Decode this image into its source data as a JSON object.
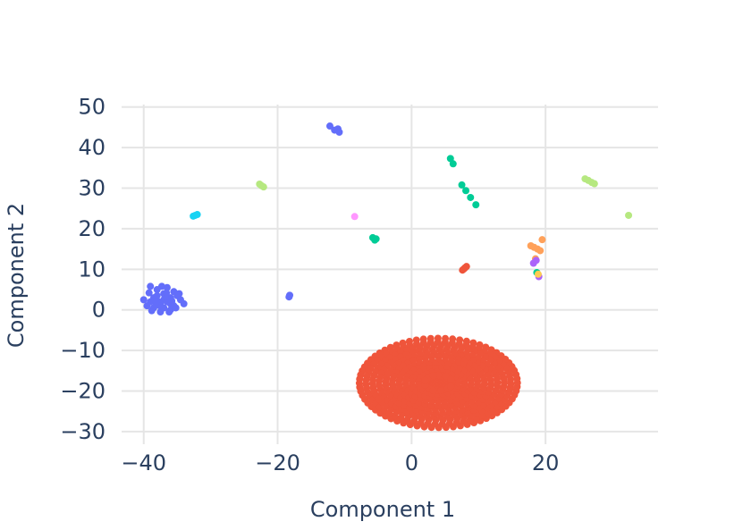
{
  "chart_data": {
    "type": "scatter",
    "title": "",
    "xlabel": "Component 1",
    "ylabel": "Component 2",
    "xlim": [
      -43.3,
      36.8
    ],
    "ylim": [
      -33.1,
      50.6
    ],
    "x_ticks": [
      -40,
      -20,
      0,
      20
    ],
    "y_ticks": [
      -30,
      -20,
      -10,
      0,
      10,
      20,
      30,
      40,
      50
    ],
    "x_tick_labels": [
      "−40",
      "−20",
      "0",
      "20"
    ],
    "y_tick_labels": [
      "−30",
      "−20",
      "−10",
      "0",
      "10",
      "20",
      "30",
      "40",
      "50"
    ],
    "grid": true,
    "legend": "none",
    "colors": {
      "blue": "#636efa",
      "red": "#ef553b",
      "green": "#00cc96",
      "purple": "#ab63fa",
      "orange": "#ffa15a",
      "cyan": "#19d3f3",
      "pink": "#ff6692",
      "lime": "#b6e880",
      "magenta": "#ff97ff",
      "light_orange": "#fecb52"
    },
    "groups": [
      {
        "color": "#636efa",
        "points": [
          [
            -37.0,
            2.5
          ],
          [
            -36.5,
            2.0
          ],
          [
            -37.5,
            1.5
          ],
          [
            -36.0,
            3.0
          ],
          [
            -38.0,
            3.5
          ],
          [
            -35.5,
            1.0
          ],
          [
            -38.5,
            0.5
          ],
          [
            -37.0,
            4.0
          ],
          [
            -36.0,
            0.0
          ],
          [
            -39.0,
            2.0
          ],
          [
            -35.0,
            3.5
          ],
          [
            -37.5,
            -0.5
          ],
          [
            -38.0,
            5.0
          ],
          [
            -36.5,
            5.5
          ],
          [
            -34.5,
            2.5
          ],
          [
            -39.5,
            1.0
          ],
          [
            -37.0,
            0.5
          ],
          [
            -35.5,
            4.5
          ],
          [
            -38.5,
            3.0
          ],
          [
            -36.0,
            1.5
          ],
          [
            -40.0,
            2.5
          ],
          [
            -34.0,
            1.5
          ],
          [
            -37.8,
            2.0
          ],
          [
            -36.8,
            3.3
          ],
          [
            -35.2,
            0.5
          ],
          [
            -39.2,
            4.2
          ],
          [
            -37.3,
            5.8
          ],
          [
            -36.2,
            -0.5
          ],
          [
            -38.8,
            -0.2
          ],
          [
            -34.7,
            4.0
          ],
          [
            -35.8,
            2.2
          ],
          [
            -37.6,
            1.0
          ],
          [
            -39.0,
            5.8
          ],
          [
            -36.6,
            4.2
          ],
          [
            -38.2,
            1.8
          ]
        ]
      },
      {
        "color": "#636efa",
        "points": [
          [
            -18.3,
            3.2
          ],
          [
            -18.2,
            3.6
          ]
        ]
      },
      {
        "color": "#636efa",
        "points": [
          [
            -12.2,
            45.3
          ],
          [
            -11.5,
            44.3
          ],
          [
            -11.0,
            44.6
          ],
          [
            -10.8,
            43.8
          ]
        ]
      },
      {
        "color": "#19d3f3",
        "points": [
          [
            -32.3,
            23.3
          ],
          [
            -32.6,
            23.1
          ],
          [
            -32.0,
            23.5
          ]
        ]
      },
      {
        "color": "#b6e880",
        "points": [
          [
            -22.7,
            31.0
          ],
          [
            -22.4,
            30.6
          ],
          [
            -22.1,
            30.3
          ]
        ]
      },
      {
        "color": "#ff97ff",
        "points": [
          [
            -8.5,
            23.0
          ]
        ]
      },
      {
        "color": "#00cc96",
        "points": [
          [
            -5.8,
            17.8
          ],
          [
            -5.5,
            17.2
          ],
          [
            -5.3,
            17.5
          ]
        ]
      },
      {
        "color": "#00cc96",
        "points": [
          [
            5.8,
            37.3
          ],
          [
            6.2,
            36.0
          ]
        ]
      },
      {
        "color": "#00cc96",
        "points": [
          [
            7.5,
            30.8
          ],
          [
            8.1,
            29.4
          ],
          [
            8.8,
            27.7
          ],
          [
            9.6,
            25.9
          ]
        ]
      },
      {
        "color": "#ef553b",
        "points": [
          [
            7.6,
            9.8
          ],
          [
            8.0,
            10.4
          ],
          [
            8.2,
            10.7
          ],
          [
            7.8,
            10.1
          ]
        ]
      },
      {
        "color": "#ffa15a",
        "points": [
          [
            17.8,
            15.8
          ],
          [
            18.3,
            15.4
          ],
          [
            18.8,
            15.0
          ],
          [
            19.2,
            14.6
          ],
          [
            19.5,
            17.3
          ],
          [
            18.5,
            12.6
          ]
        ]
      },
      {
        "color": "#ab63fa",
        "points": [
          [
            18.2,
            11.5
          ],
          [
            18.6,
            12.2
          ],
          [
            19.0,
            8.2
          ]
        ]
      },
      {
        "color": "#00cc96",
        "points": [
          [
            18.7,
            9.2
          ]
        ]
      },
      {
        "color": "#fecb52",
        "points": [
          [
            18.9,
            8.8
          ]
        ]
      },
      {
        "color": "#b6e880",
        "points": [
          [
            25.9,
            32.3
          ],
          [
            26.4,
            31.9
          ],
          [
            26.9,
            31.4
          ],
          [
            27.3,
            31.1
          ],
          [
            32.4,
            23.3
          ]
        ]
      }
    ],
    "dense_cluster": {
      "color": "#ef553b",
      "center": [
        4.0,
        -18.0
      ],
      "x_spread": [
        -8.3,
        15.3
      ],
      "y_spread": [
        -28.7,
        -6.7
      ],
      "rings": 12,
      "approx_point_count": 900
    }
  }
}
